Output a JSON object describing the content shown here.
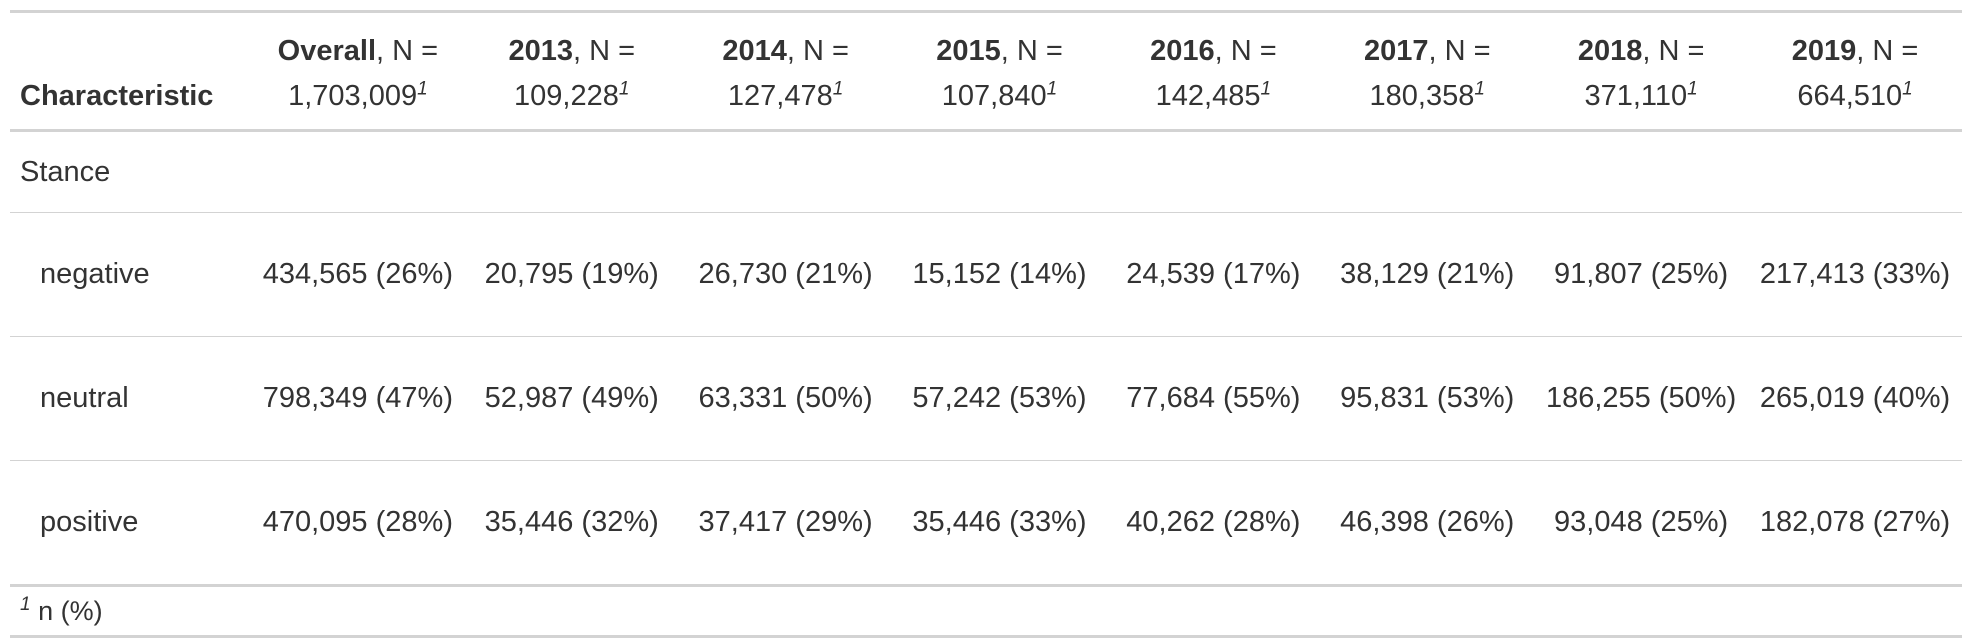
{
  "table": {
    "header": {
      "characteristic": "Characteristic",
      "columns": [
        {
          "name": "Overall",
          "suffix": ", N =",
          "n": "1,703,009",
          "mark": "1"
        },
        {
          "name": "2013",
          "suffix": ", N =",
          "n": "109,228",
          "mark": "1"
        },
        {
          "name": "2014",
          "suffix": ", N =",
          "n": "127,478",
          "mark": "1"
        },
        {
          "name": "2015",
          "suffix": ", N =",
          "n": "107,840",
          "mark": "1"
        },
        {
          "name": "2016",
          "suffix": ", N =",
          "n": "142,485",
          "mark": "1"
        },
        {
          "name": "2017",
          "suffix": ", N =",
          "n": "180,358",
          "mark": "1"
        },
        {
          "name": "2018",
          "suffix": ", N =",
          "n": "371,110",
          "mark": "1"
        },
        {
          "name": "2019",
          "suffix": ", N =",
          "n": "664,510",
          "mark": "1"
        }
      ]
    },
    "group": "Stance",
    "rows": [
      {
        "label": "negative",
        "cells": [
          "434,565 (26%)",
          "20,795 (19%)",
          "26,730 (21%)",
          "15,152 (14%)",
          "24,539 (17%)",
          "38,129 (21%)",
          "91,807 (25%)",
          "217,413 (33%)"
        ]
      },
      {
        "label": "neutral",
        "cells": [
          "798,349 (47%)",
          "52,987 (49%)",
          "63,331 (50%)",
          "57,242 (53%)",
          "77,684 (55%)",
          "95,831 (53%)",
          "186,255 (50%)",
          "265,019 (40%)"
        ]
      },
      {
        "label": "positive",
        "cells": [
          "470,095 (28%)",
          "35,446 (32%)",
          "37,417 (29%)",
          "35,446 (33%)",
          "40,262 (28%)",
          "46,398 (26%)",
          "93,048 (25%)",
          "182,078 (27%)"
        ]
      }
    ],
    "footnote": {
      "mark": "1",
      "text": "n (%)"
    }
  }
}
